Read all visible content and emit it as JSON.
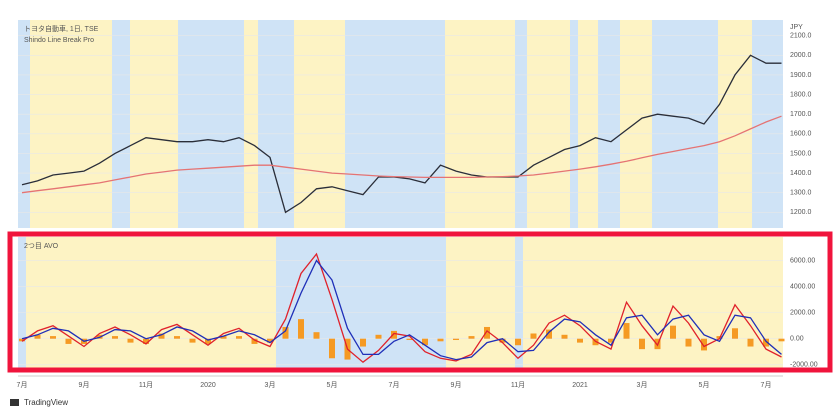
{
  "chart_data": [
    {
      "type": "line",
      "title": "トヨタ自動車, 1日, TSE",
      "subtitle": "Shindo Line Break Pro",
      "unit": "JPY",
      "ylim": [
        1120,
        2180
      ],
      "yticks": [
        {
          "value": 1200,
          "label": "1200.0"
        },
        {
          "value": 1300,
          "label": "1300.0"
        },
        {
          "value": 1400,
          "label": "1400.0"
        },
        {
          "value": 1500,
          "label": "1500.0"
        },
        {
          "value": 1600,
          "label": "1600.0"
        },
        {
          "value": 1700,
          "label": "1700.0"
        },
        {
          "value": 1800,
          "label": "1800.0"
        },
        {
          "value": 1900,
          "label": "1900.0"
        },
        {
          "value": 2000,
          "label": "2000.0"
        },
        {
          "value": 2100,
          "label": "2100.0"
        }
      ],
      "series": [
        {
          "color": "#2a2e39",
          "values": [
            1340,
            1360,
            1390,
            1400,
            1410,
            1450,
            1500,
            1540,
            1580,
            1570,
            1560,
            1560,
            1570,
            1560,
            1580,
            1540,
            1480,
            1200,
            1250,
            1320,
            1330,
            1310,
            1290,
            1380,
            1380,
            1370,
            1350,
            1440,
            1410,
            1390,
            1380,
            1380,
            1380,
            1440,
            1480,
            1520,
            1540,
            1580,
            1560,
            1620,
            1680,
            1700,
            1690,
            1680,
            1650,
            1750,
            1900,
            2000,
            1960,
            1960
          ]
        },
        {
          "color": "#e57373",
          "values": [
            1300,
            1310,
            1320,
            1330,
            1340,
            1350,
            1365,
            1380,
            1395,
            1405,
            1415,
            1420,
            1425,
            1430,
            1435,
            1440,
            1440,
            1430,
            1420,
            1410,
            1400,
            1395,
            1390,
            1385,
            1382,
            1380,
            1378,
            1378,
            1378,
            1378,
            1380,
            1382,
            1385,
            1390,
            1400,
            1410,
            1420,
            1432,
            1445,
            1460,
            1478,
            1495,
            1510,
            1525,
            1540,
            1560,
            1590,
            1625,
            1660,
            1690
          ]
        }
      ]
    },
    {
      "type": "line",
      "title": "2つ目 AVO",
      "ylim": [
        -2400,
        7800
      ],
      "yticks": [
        {
          "value": -2000,
          "label": "-2000.00"
        },
        {
          "value": 0,
          "label": "0.00"
        },
        {
          "value": 2000,
          "label": "2000.00"
        },
        {
          "value": 4000,
          "label": "4000.00"
        },
        {
          "value": 6000,
          "label": "6000.00"
        }
      ],
      "categories": [
        "7月",
        null,
        null,
        null,
        "9月",
        null,
        null,
        null,
        "11月",
        null,
        null,
        null,
        "2020",
        null,
        null,
        null,
        "3月",
        null,
        null,
        null,
        "5月",
        null,
        null,
        null,
        "7月",
        null,
        null,
        null,
        "9月",
        null,
        null,
        null,
        "11月",
        null,
        null,
        null,
        "2021",
        null,
        null,
        null,
        "3月",
        null,
        null,
        null,
        "5月",
        null,
        null,
        null,
        "7月",
        null
      ],
      "series": [
        {
          "type": "bar",
          "color": "#f59a23",
          "values": [
            -200,
            300,
            200,
            -400,
            -400,
            300,
            200,
            -300,
            -400,
            400,
            200,
            -300,
            -400,
            200,
            200,
            -400,
            -300,
            900,
            1500,
            500,
            -1500,
            -1600,
            -600,
            300,
            600,
            -100,
            -500,
            -200,
            -100,
            200,
            900,
            -300,
            -500,
            400,
            700,
            300,
            -300,
            -500,
            -300,
            1200,
            -800,
            -800,
            1000,
            -600,
            -900,
            200,
            800,
            -600,
            -600,
            -200
          ]
        },
        {
          "type": "line",
          "color": "#e0212b",
          "values": [
            -200,
            600,
            1000,
            200,
            -600,
            400,
            900,
            300,
            -400,
            700,
            1100,
            300,
            -500,
            400,
            800,
            -100,
            -600,
            1500,
            5000,
            6500,
            3000,
            -800,
            -1800,
            -900,
            400,
            200,
            -1000,
            -1500,
            -1700,
            -1200,
            600,
            -300,
            -1500,
            -500,
            1200,
            1800,
            1000,
            -200,
            -800,
            2800,
            1000,
            -500,
            2500,
            1200,
            -600,
            0,
            2600,
            1000,
            -800,
            -1400
          ]
        },
        {
          "type": "line",
          "color": "#1f2fb8",
          "values": [
            0,
            300,
            800,
            600,
            -200,
            100,
            700,
            600,
            0,
            300,
            900,
            600,
            -100,
            200,
            600,
            300,
            -300,
            600,
            3500,
            6000,
            4500,
            800,
            -1200,
            -1200,
            -200,
            300,
            -500,
            -1300,
            -1600,
            -1400,
            -300,
            0,
            -1000,
            -900,
            500,
            1500,
            1300,
            300,
            -500,
            1600,
            1800,
            300,
            1500,
            1800,
            300,
            -200,
            1800,
            1600,
            -200,
            -1200
          ]
        }
      ]
    }
  ],
  "footer": "TradingView"
}
